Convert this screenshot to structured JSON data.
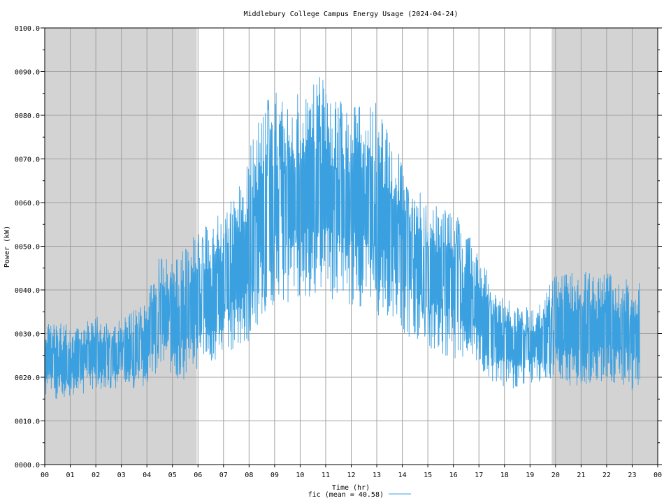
{
  "chart_data": {
    "type": "line",
    "title": "Middlebury College Campus Energy Usage (2024-04-24)",
    "xlabel": "Time (hr)",
    "ylabel": "Power (kW)",
    "xlim": [
      0,
      24
    ],
    "ylim": [
      0,
      100
    ],
    "x_ticks": [
      "00",
      "01",
      "02",
      "03",
      "04",
      "05",
      "06",
      "07",
      "08",
      "09",
      "10",
      "11",
      "12",
      "13",
      "14",
      "15",
      "16",
      "17",
      "18",
      "19",
      "20",
      "21",
      "22",
      "23",
      "00"
    ],
    "y_ticks": [
      "0000.0",
      "0010.0",
      "0020.0",
      "0030.0",
      "0040.0",
      "0050.0",
      "0060.0",
      "0070.0",
      "0080.0",
      "0090.0",
      "0100.0"
    ],
    "grid": true,
    "shaded_periods_hr": [
      [
        0,
        5.95
      ],
      [
        19.85,
        24
      ]
    ],
    "line_color": "#3aa0e0",
    "shade_color": "#d3d3d3",
    "series": [
      {
        "name": "fic",
        "legend_label": "fic (mean = 40.58)",
        "hourly_profile": {
          "x": [
            0,
            1,
            2,
            3,
            4,
            4.5,
            5,
            5.5,
            6,
            7,
            7.5,
            8,
            8.5,
            9,
            10,
            10.8,
            11,
            12,
            12.8,
            13,
            13.5,
            14,
            15,
            16,
            17,
            17.5,
            18,
            19,
            19.5,
            20,
            21,
            22,
            23,
            23.3
          ],
          "low": [
            15,
            15,
            17,
            17,
            18,
            20,
            20,
            19,
            22,
            24,
            26,
            28,
            34,
            36,
            37,
            40,
            38,
            36,
            36,
            34,
            33,
            30,
            26,
            24,
            21,
            19,
            17,
            18,
            19,
            18,
            18,
            19,
            17,
            17
          ],
          "high": [
            33,
            32,
            34,
            33,
            38,
            50,
            46,
            50,
            54,
            58,
            62,
            72,
            82,
            86,
            85,
            91,
            85,
            82,
            85,
            84,
            75,
            70,
            60,
            58,
            50,
            42,
            38,
            36,
            38,
            44,
            44,
            45,
            42,
            42
          ]
        }
      }
    ]
  }
}
